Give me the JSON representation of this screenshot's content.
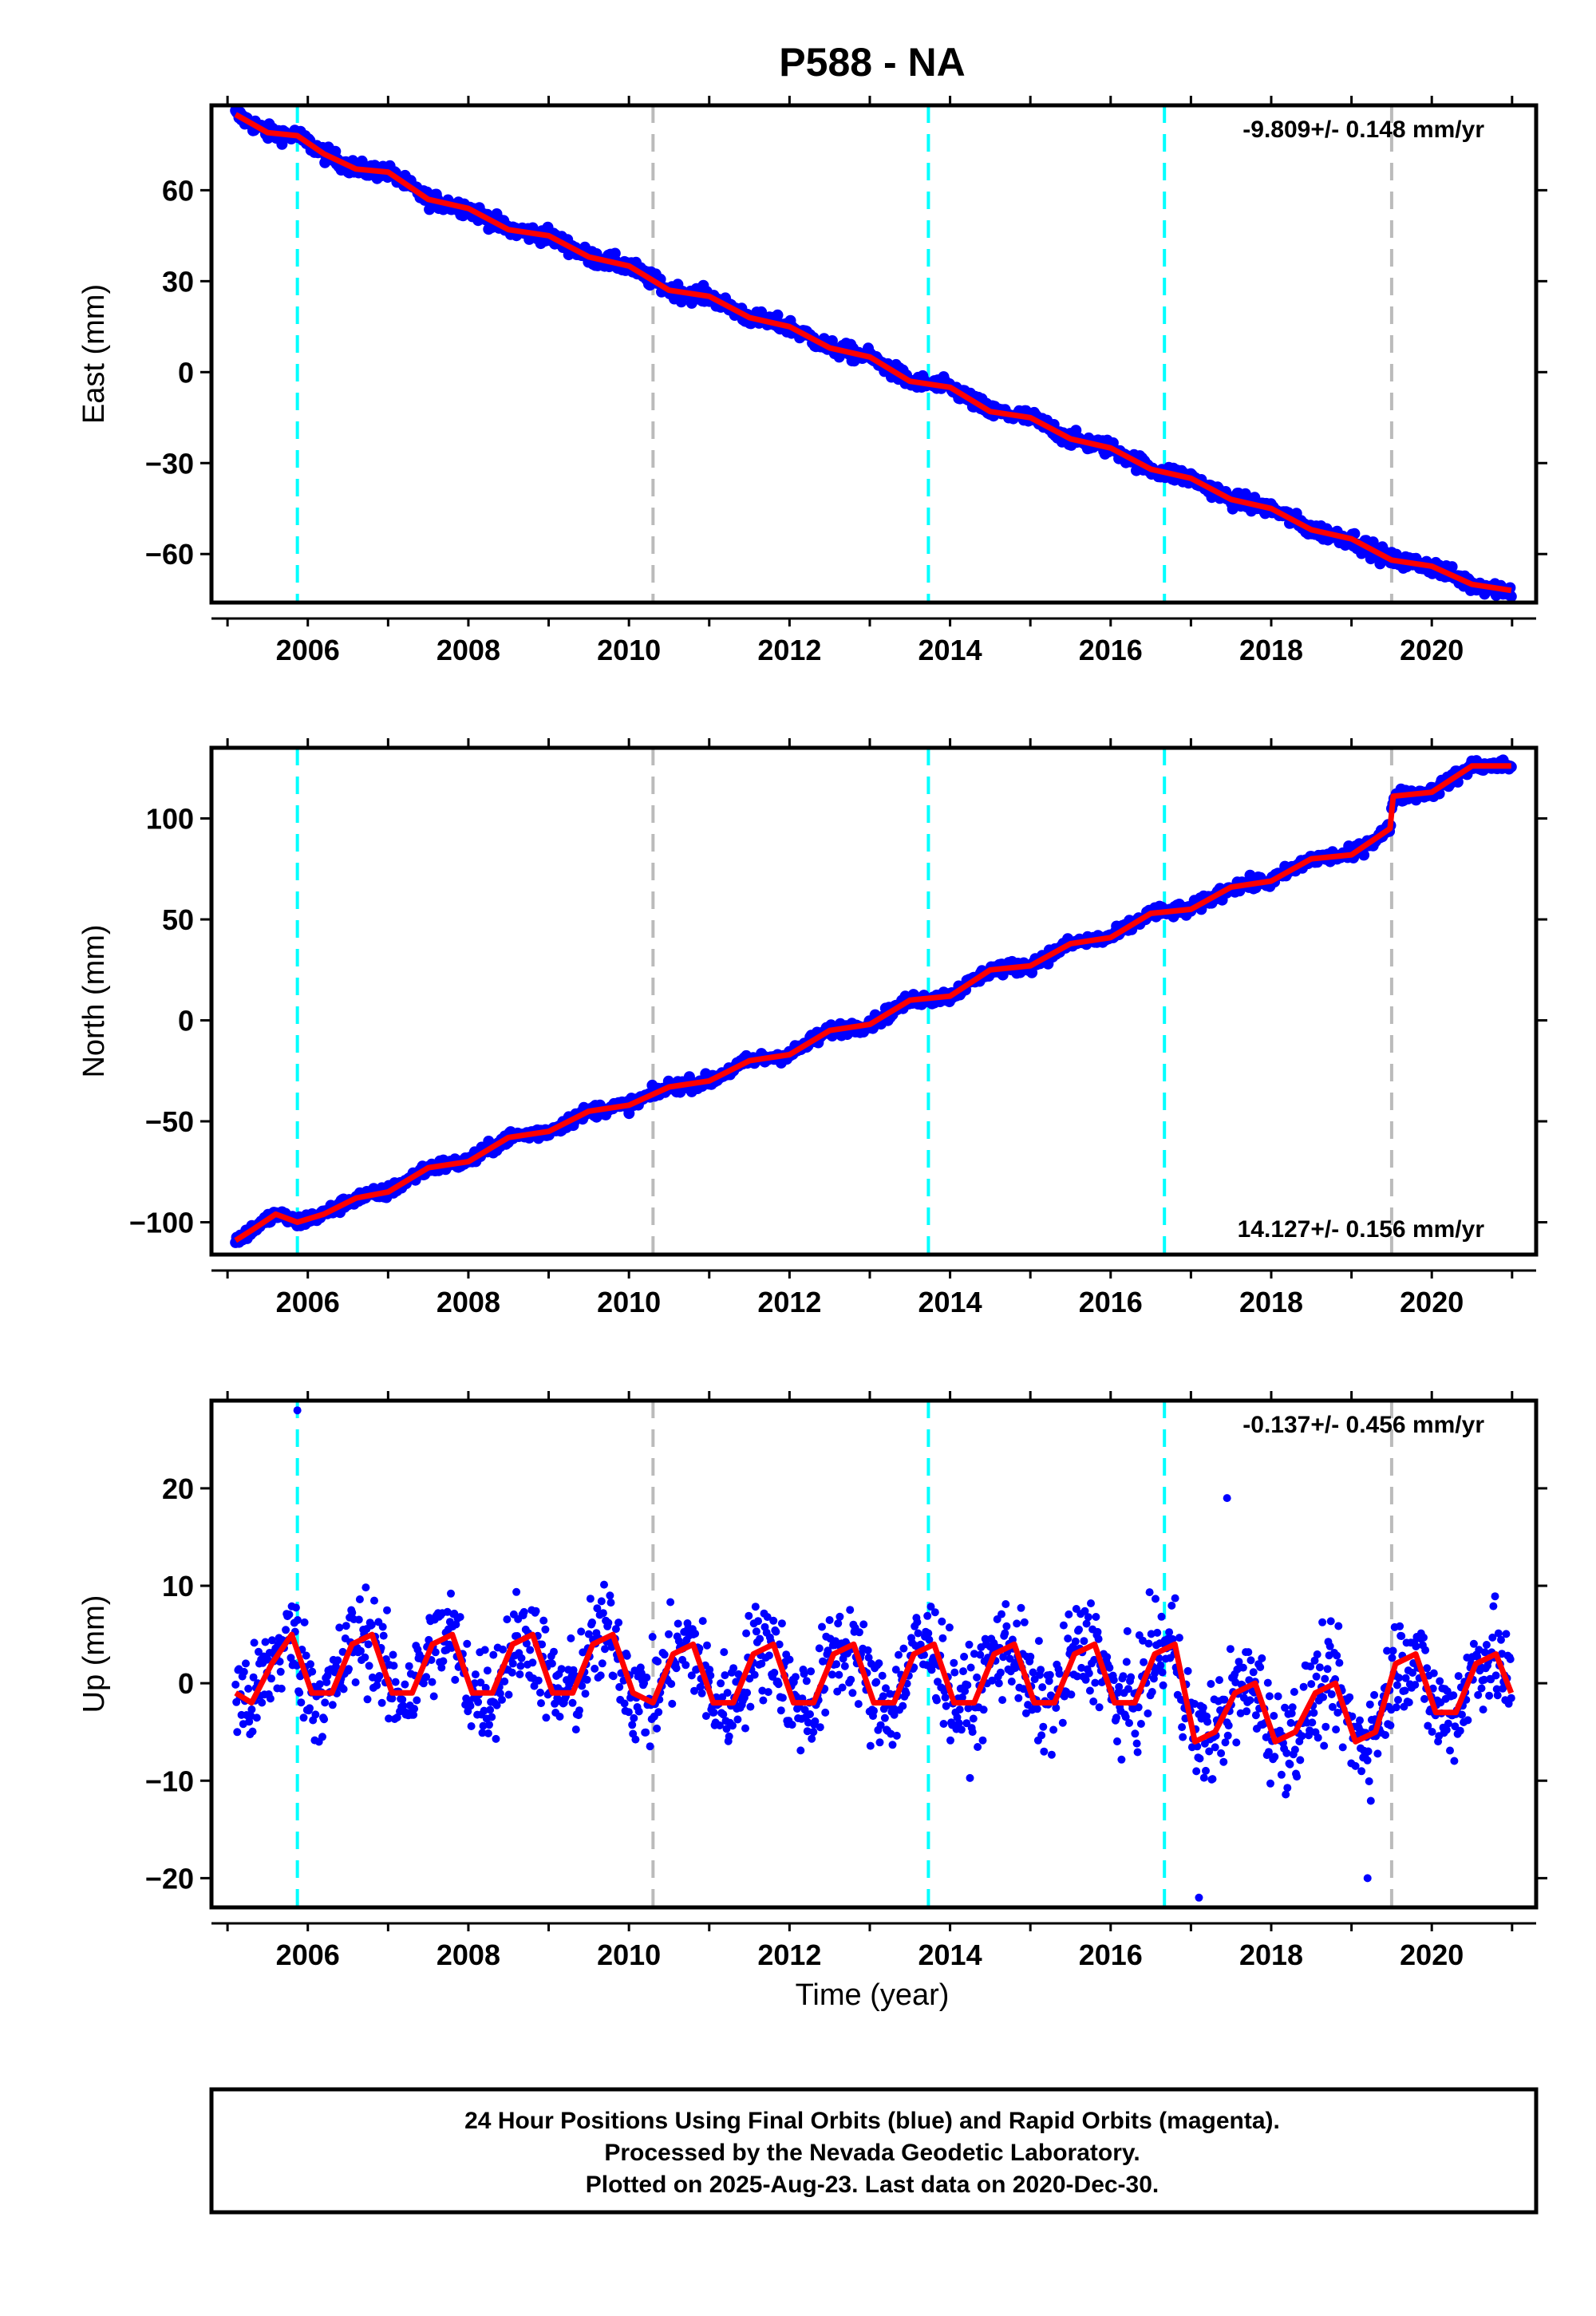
{
  "title": "P588 - NA",
  "xlabel": "Time (year)",
  "footer": {
    "line1": "24 Hour Positions Using Final Orbits (blue) and Rapid Orbits (magenta).",
    "line2": "Processed by the Nevada Geodetic Laboratory.",
    "line3": "Plotted on 2025-Aug-23. Last data on 2020-Dec-30."
  },
  "colors": {
    "data": "#0000ff",
    "model": "#ff0000",
    "equipment_change": "#00ffff",
    "earthquake": "#bbbbbb"
  },
  "chart_data": [
    {
      "type": "scatter",
      "component": "East",
      "ylabel": "East (mm)",
      "rate": "-9.809+/- 0.148 mm/yr",
      "rate_position": "top-right",
      "xlim": [
        2004.8,
        2021.3
      ],
      "ylim": [
        -76,
        88
      ],
      "yticks": [
        -60,
        -30,
        0,
        30,
        60
      ],
      "xticks": [
        2006,
        2008,
        2010,
        2012,
        2014,
        2016,
        2018,
        2020
      ],
      "cyan_lines": [
        2005.87,
        2013.73,
        2016.67
      ],
      "gray_lines": [
        2010.3,
        2019.5
      ],
      "series": [
        {
          "values": [
            [
              2005.1,
              85
            ],
            [
              2005.3,
              82
            ],
            [
              2005.5,
              79
            ],
            [
              2005.87,
              78
            ],
            [
              2006.2,
              72
            ],
            [
              2006.6,
              67
            ],
            [
              2007.0,
              66
            ],
            [
              2007.5,
              57
            ],
            [
              2008.0,
              54
            ],
            [
              2008.5,
              47
            ],
            [
              2009.0,
              45
            ],
            [
              2009.5,
              38
            ],
            [
              2010.0,
              35
            ],
            [
              2010.5,
              27
            ],
            [
              2011.0,
              25
            ],
            [
              2011.5,
              18
            ],
            [
              2012.0,
              15
            ],
            [
              2012.5,
              8
            ],
            [
              2013.0,
              5
            ],
            [
              2013.5,
              -3
            ],
            [
              2014.0,
              -5
            ],
            [
              2014.5,
              -13
            ],
            [
              2015.0,
              -15
            ],
            [
              2015.5,
              -22
            ],
            [
              2016.0,
              -25
            ],
            [
              2016.5,
              -32
            ],
            [
              2017.0,
              -35
            ],
            [
              2017.5,
              -42
            ],
            [
              2018.0,
              -45
            ],
            [
              2018.5,
              -52
            ],
            [
              2019.0,
              -55
            ],
            [
              2019.5,
              -62
            ],
            [
              2020.0,
              -64
            ],
            [
              2020.5,
              -70
            ],
            [
              2020.99,
              -72
            ]
          ]
        }
      ]
    },
    {
      "type": "scatter",
      "component": "North",
      "ylabel": "North (mm)",
      "rate": "14.127+/- 0.156 mm/yr",
      "rate_position": "bottom-right",
      "xlim": [
        2004.8,
        2021.3
      ],
      "ylim": [
        -116,
        135
      ],
      "yticks": [
        -100,
        -50,
        0,
        50,
        100
      ],
      "xticks": [
        2006,
        2008,
        2010,
        2012,
        2014,
        2016,
        2018,
        2020
      ],
      "cyan_lines": [
        2005.87,
        2013.73,
        2016.67
      ],
      "gray_lines": [
        2010.3,
        2019.5
      ],
      "series": [
        {
          "values": [
            [
              2005.1,
              -109
            ],
            [
              2005.3,
              -104
            ],
            [
              2005.6,
              -96
            ],
            [
              2005.87,
              -100
            ],
            [
              2006.2,
              -96
            ],
            [
              2006.6,
              -88
            ],
            [
              2007.0,
              -85
            ],
            [
              2007.5,
              -73
            ],
            [
              2008.0,
              -70
            ],
            [
              2008.5,
              -58
            ],
            [
              2009.0,
              -55
            ],
            [
              2009.5,
              -45
            ],
            [
              2010.0,
              -42
            ],
            [
              2010.5,
              -33
            ],
            [
              2011.0,
              -30
            ],
            [
              2011.5,
              -20
            ],
            [
              2012.0,
              -17
            ],
            [
              2012.5,
              -5
            ],
            [
              2013.0,
              -2
            ],
            [
              2013.5,
              10
            ],
            [
              2014.0,
              12
            ],
            [
              2014.5,
              25
            ],
            [
              2015.0,
              27
            ],
            [
              2015.5,
              38
            ],
            [
              2016.0,
              41
            ],
            [
              2016.5,
              53
            ],
            [
              2017.0,
              55
            ],
            [
              2017.5,
              66
            ],
            [
              2018.0,
              69
            ],
            [
              2018.5,
              80
            ],
            [
              2019.0,
              82
            ],
            [
              2019.48,
              95
            ],
            [
              2019.52,
              111
            ],
            [
              2020.0,
              113
            ],
            [
              2020.5,
              126
            ],
            [
              2020.99,
              126
            ]
          ]
        }
      ]
    },
    {
      "type": "scatter",
      "component": "Up",
      "ylabel": "Up (mm)",
      "rate": "-0.137+/- 0.456 mm/yr",
      "rate_position": "top-right",
      "xlim": [
        2004.8,
        2021.3
      ],
      "ylim": [
        -23,
        29
      ],
      "yticks": [
        -20,
        -10,
        0,
        10,
        20
      ],
      "xticks": [
        2006,
        2008,
        2010,
        2012,
        2014,
        2016,
        2018,
        2020
      ],
      "cyan_lines": [
        2005.87,
        2013.73,
        2016.67
      ],
      "gray_lines": [
        2010.3,
        2019.5
      ],
      "outliers": [
        [
          2005.87,
          28
        ],
        [
          2017.45,
          19
        ],
        [
          2019.2,
          -20
        ],
        [
          2017.1,
          -22
        ]
      ],
      "series": [
        {
          "values": [
            [
              2005.1,
              -1
            ],
            [
              2005.3,
              -2
            ],
            [
              2005.55,
              2
            ],
            [
              2005.8,
              5
            ],
            [
              2006.05,
              -1
            ],
            [
              2006.3,
              -1
            ],
            [
              2006.55,
              4
            ],
            [
              2006.8,
              5
            ],
            [
              2007.05,
              -1
            ],
            [
              2007.3,
              -1
            ],
            [
              2007.55,
              4
            ],
            [
              2007.8,
              5
            ],
            [
              2008.05,
              -1
            ],
            [
              2008.3,
              -1
            ],
            [
              2008.55,
              4
            ],
            [
              2008.8,
              5
            ],
            [
              2009.05,
              -1
            ],
            [
              2009.3,
              -1
            ],
            [
              2009.55,
              4
            ],
            [
              2009.8,
              5
            ],
            [
              2010.05,
              -1
            ],
            [
              2010.3,
              -2
            ],
            [
              2010.55,
              3
            ],
            [
              2010.8,
              4
            ],
            [
              2011.05,
              -2
            ],
            [
              2011.3,
              -2
            ],
            [
              2011.55,
              3
            ],
            [
              2011.8,
              4
            ],
            [
              2012.05,
              -2
            ],
            [
              2012.3,
              -2
            ],
            [
              2012.55,
              3
            ],
            [
              2012.8,
              4
            ],
            [
              2013.05,
              -2
            ],
            [
              2013.3,
              -2
            ],
            [
              2013.55,
              3
            ],
            [
              2013.8,
              4
            ],
            [
              2014.05,
              -2
            ],
            [
              2014.3,
              -2
            ],
            [
              2014.55,
              3
            ],
            [
              2014.8,
              4
            ],
            [
              2015.05,
              -2
            ],
            [
              2015.3,
              -2
            ],
            [
              2015.55,
              3
            ],
            [
              2015.8,
              4
            ],
            [
              2016.05,
              -2
            ],
            [
              2016.3,
              -2
            ],
            [
              2016.55,
              3
            ],
            [
              2016.8,
              4
            ],
            [
              2017.05,
              -6
            ],
            [
              2017.3,
              -5
            ],
            [
              2017.55,
              -1
            ],
            [
              2017.8,
              0
            ],
            [
              2018.05,
              -6
            ],
            [
              2018.3,
              -5
            ],
            [
              2018.55,
              -1
            ],
            [
              2018.8,
              0
            ],
            [
              2019.05,
              -6
            ],
            [
              2019.3,
              -5
            ],
            [
              2019.55,
              2
            ],
            [
              2019.8,
              3
            ],
            [
              2020.05,
              -3
            ],
            [
              2020.3,
              -3
            ],
            [
              2020.55,
              2
            ],
            [
              2020.8,
              3
            ],
            [
              2020.99,
              -1
            ]
          ]
        }
      ]
    }
  ]
}
